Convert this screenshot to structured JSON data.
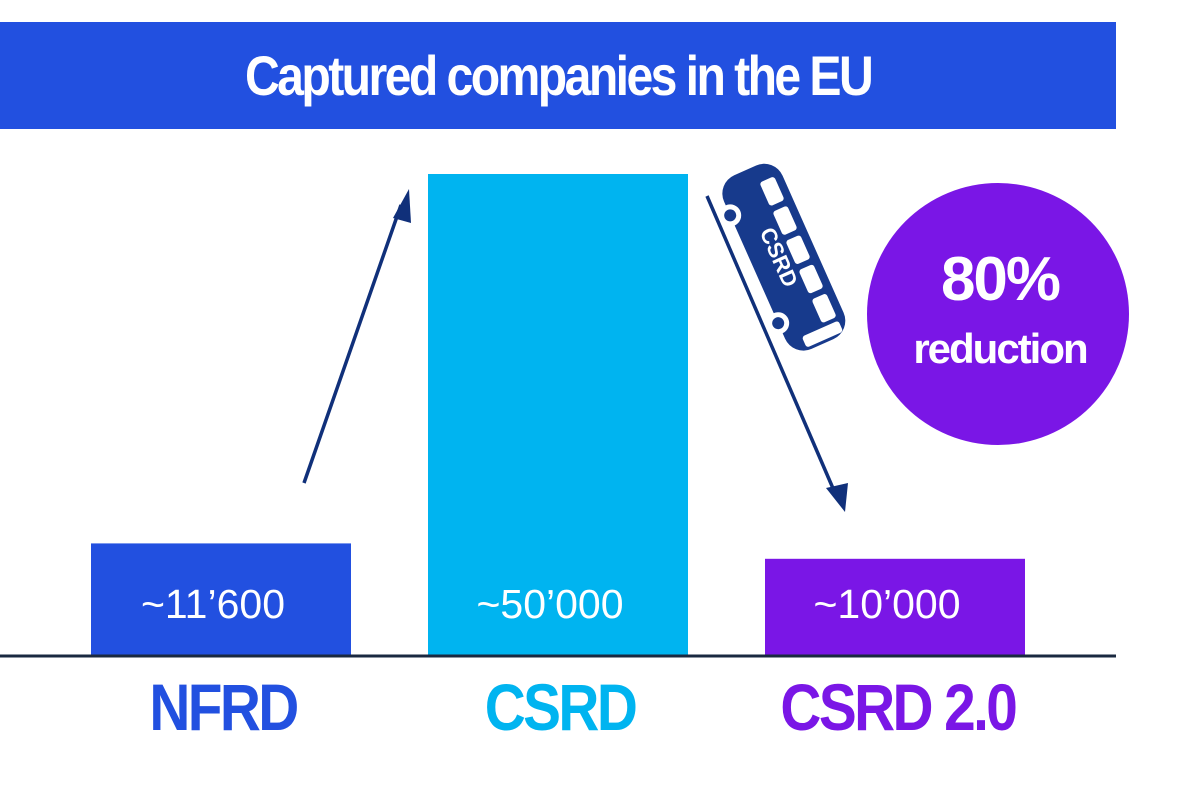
{
  "chart_data": {
    "type": "bar",
    "title": "Captured companies in the EU",
    "categories": [
      "NFRD",
      "CSRD",
      "CSRD 2.0"
    ],
    "values": [
      11600,
      50000,
      10000
    ],
    "value_labels": [
      "~11’600",
      "~50’000",
      "~10’000"
    ],
    "ylim": [
      0,
      50000
    ],
    "colors": [
      "#2250e0",
      "#00b4f0",
      "#7a16e6"
    ],
    "grid": false,
    "annotations": {
      "badge_value": "80%",
      "badge_text": "reduction",
      "bus_label": "CSRD"
    }
  },
  "colors": {
    "title_background": "#2250e0",
    "title_text": "#ffffff",
    "axis": "#1a2940",
    "arrow": "#10307a",
    "bus": "#173a8c",
    "badge": "#7a16e6"
  },
  "icons": {
    "arrow_up": "arrow-up-icon",
    "arrow_down": "arrow-down-icon",
    "bus": "bus-icon"
  }
}
